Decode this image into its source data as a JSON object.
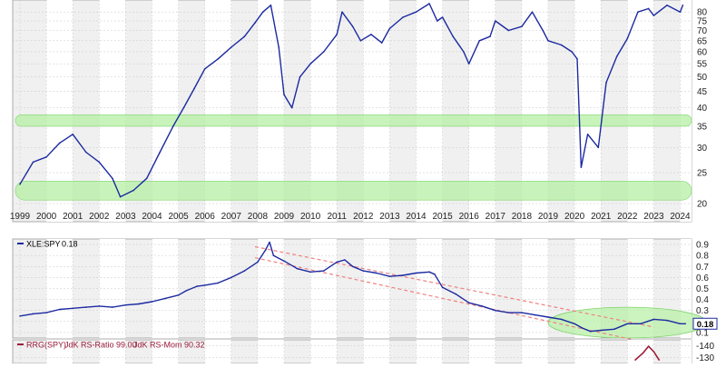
{
  "chart_data": [
    {
      "type": "line",
      "panel": "price",
      "title": "",
      "xlabel": "",
      "ylabel": "",
      "ylim": [
        18,
        85
      ],
      "x_ticks": [
        "1999",
        "2000",
        "2001",
        "2002",
        "2003",
        "2004",
        "2005",
        "2006",
        "2007",
        "2008",
        "2009",
        "2010",
        "2011",
        "2012",
        "2013",
        "2014",
        "2015",
        "2016",
        "2017",
        "2018",
        "2019",
        "2020",
        "2021",
        "2022",
        "2023",
        "2024"
      ],
      "y_ticks": [
        20,
        25,
        30,
        35,
        40,
        45,
        50,
        55,
        60,
        65,
        70,
        75,
        80
      ],
      "grid": true,
      "series": [
        {
          "color": "#1c2aa0",
          "x": [
            1999.0,
            1999.5,
            2000.0,
            2000.5,
            2001.0,
            2001.5,
            2002.0,
            2002.5,
            2002.8,
            2003.3,
            2003.8,
            2004.3,
            2004.8,
            2005.2,
            2005.6,
            2006.0,
            2006.5,
            2007.0,
            2007.5,
            2007.9,
            2008.2,
            2008.5,
            2008.8,
            2009.0,
            2009.3,
            2009.6,
            2010.0,
            2010.5,
            2011.0,
            2011.2,
            2011.6,
            2011.9,
            2012.3,
            2012.7,
            2013.0,
            2013.5,
            2014.0,
            2014.5,
            2014.8,
            2015.0,
            2015.4,
            2015.8,
            2016.0,
            2016.4,
            2016.8,
            2017.0,
            2017.5,
            2018.0,
            2018.4,
            2018.8,
            2019.0,
            2019.5,
            2019.9,
            2020.1,
            2020.25,
            2020.5,
            2020.9,
            2021.2,
            2021.6,
            2022.0,
            2022.4,
            2022.8,
            2023.0,
            2023.5,
            2024.0,
            2024.1
          ],
          "values": [
            23,
            27,
            28,
            31,
            33,
            29,
            27,
            24,
            21,
            22,
            24,
            29,
            35,
            40,
            46,
            53,
            57,
            62,
            67,
            74,
            80,
            84,
            62,
            44,
            40,
            50,
            55,
            60,
            68,
            80,
            72,
            65,
            68,
            64,
            71,
            77,
            80,
            85,
            75,
            77,
            67,
            60,
            55,
            65,
            67,
            75,
            70,
            72,
            80,
            70,
            65,
            63,
            60,
            57,
            26,
            33,
            30,
            48,
            58,
            66,
            80,
            82,
            78,
            84,
            80,
            84
          ]
        }
      ],
      "bands": [
        {
          "from": 35,
          "to": 38,
          "color": "#b6f0a4"
        },
        {
          "from": 20.5,
          "to": 23.5,
          "color": "#b6f0a4"
        }
      ]
    },
    {
      "type": "line",
      "panel": "ratio",
      "legend": {
        "symbol": "XLE:SPY",
        "value_text": "0.18"
      },
      "legend_position": "top-left",
      "title": "",
      "xlabel": "",
      "ylabel": "",
      "ylim": [
        0.05,
        0.95
      ],
      "y_ticks": [
        0.1,
        0.2,
        0.3,
        0.4,
        0.5,
        0.6,
        0.7,
        0.8,
        0.9
      ],
      "last_value_label": "0.18",
      "grid": true,
      "series": [
        {
          "name": "XLE:SPY",
          "color": "#1c2aa0",
          "x": [
            1999.0,
            1999.5,
            2000.0,
            2000.5,
            2001.0,
            2001.5,
            2002.0,
            2002.5,
            2003.0,
            2003.5,
            2004.0,
            2004.5,
            2005.0,
            2005.3,
            2005.7,
            2006.0,
            2006.5,
            2007.0,
            2007.5,
            2008.0,
            2008.3,
            2008.45,
            2008.6,
            2009.0,
            2009.5,
            2010.0,
            2010.5,
            2011.0,
            2011.3,
            2011.6,
            2012.0,
            2012.5,
            2013.0,
            2013.5,
            2014.0,
            2014.5,
            2014.7,
            2015.0,
            2015.5,
            2016.0,
            2016.5,
            2017.0,
            2017.5,
            2018.0,
            2018.5,
            2019.0,
            2019.5,
            2020.0,
            2020.3,
            2020.6,
            2021.0,
            2021.5,
            2022.0,
            2022.5,
            2023.0,
            2023.5,
            2024.0,
            2024.2
          ],
          "values": [
            0.25,
            0.27,
            0.28,
            0.31,
            0.32,
            0.33,
            0.34,
            0.33,
            0.35,
            0.36,
            0.38,
            0.41,
            0.44,
            0.48,
            0.52,
            0.53,
            0.55,
            0.6,
            0.66,
            0.74,
            0.85,
            0.92,
            0.8,
            0.75,
            0.68,
            0.65,
            0.66,
            0.74,
            0.76,
            0.7,
            0.66,
            0.64,
            0.61,
            0.62,
            0.64,
            0.65,
            0.63,
            0.51,
            0.45,
            0.37,
            0.34,
            0.3,
            0.28,
            0.28,
            0.26,
            0.24,
            0.22,
            0.18,
            0.14,
            0.11,
            0.12,
            0.13,
            0.18,
            0.18,
            0.22,
            0.21,
            0.18,
            0.18
          ]
        }
      ],
      "trend_channel": {
        "upper": [
          [
            2007.9,
            0.88
          ],
          [
            2023.0,
            0.15
          ]
        ],
        "lower": [
          [
            2007.9,
            0.78
          ],
          [
            2022.5,
            0.02
          ]
        ],
        "color": "#f08080"
      },
      "highlight_ellipse": {
        "center_x": 2022.0,
        "center_y": 0.19,
        "rx_years": 3.0,
        "ry": 0.14,
        "color": "#b6f0a4"
      }
    },
    {
      "type": "line",
      "panel": "rrg",
      "legend": {
        "prefix": "RRG(SPY)",
        "ratio_text": "JdK RS-Ratio 99.00",
        "momentum_text": "JdK RS-Mom 90.32"
      },
      "legend_position": "top-left",
      "ylim": [
        125,
        145
      ],
      "y_ticks": [
        130,
        140
      ],
      "series": [
        {
          "name": "RRG(SPY)",
          "color": "#9b1b3a",
          "x": [
            2022.3,
            2022.6,
            2022.8,
            2023.0,
            2023.2
          ],
          "values": [
            128,
            134,
            139.5,
            135,
            128
          ]
        }
      ]
    }
  ]
}
